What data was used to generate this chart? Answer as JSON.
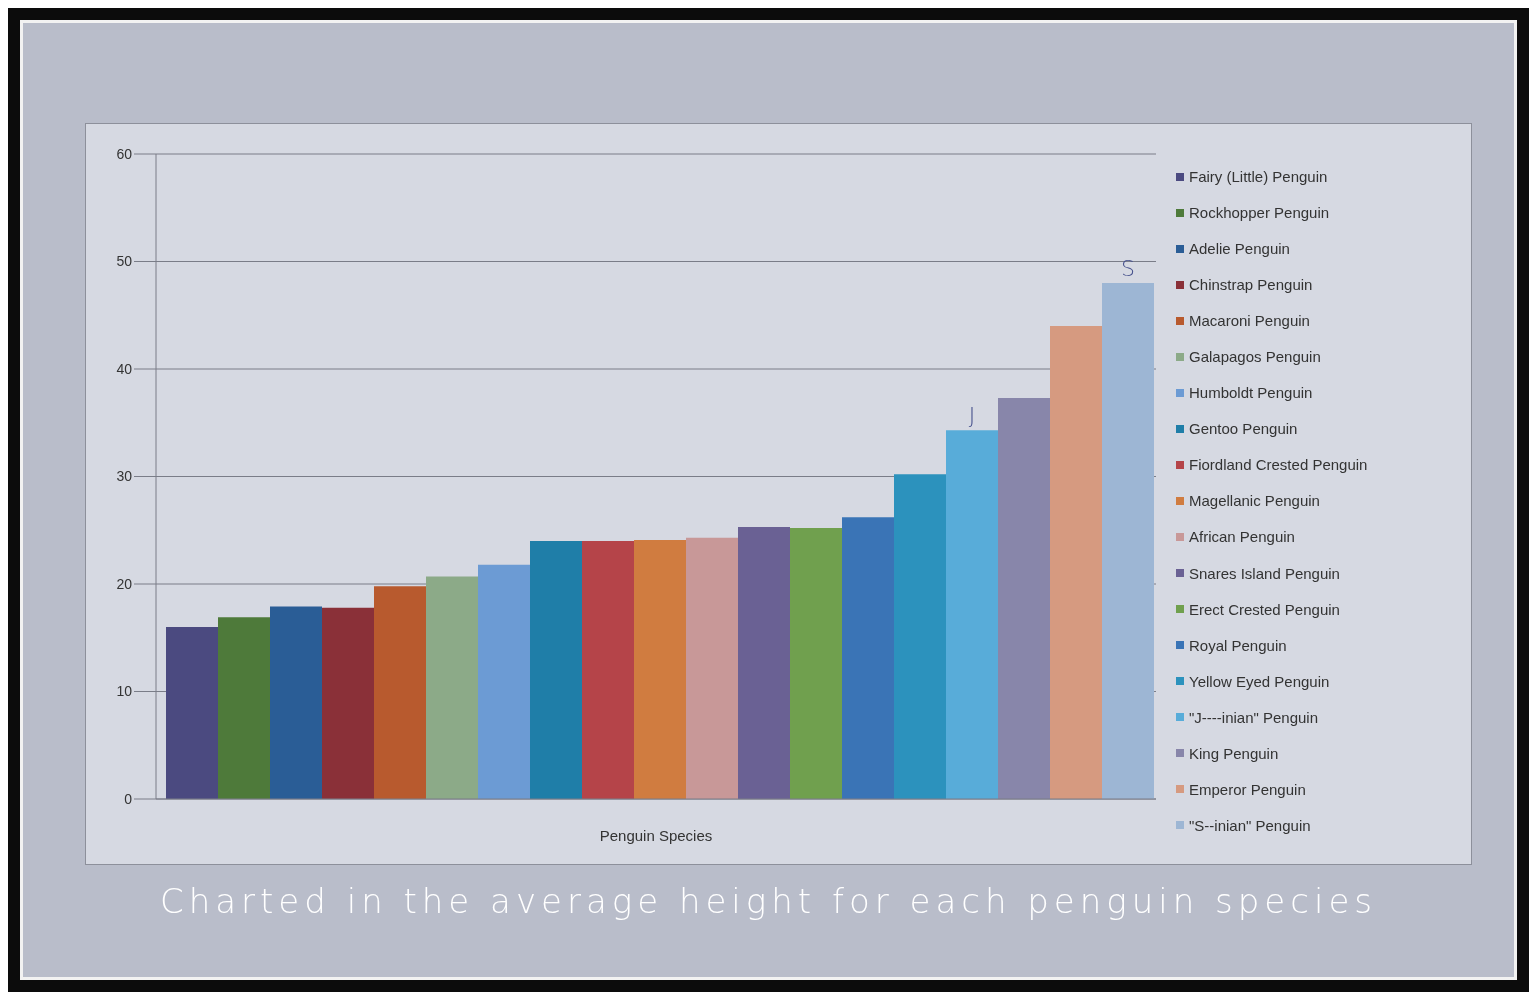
{
  "chart_data": {
    "type": "bar",
    "xlabel": "Penguin Species",
    "categories": [
      null
    ],
    "series": [
      {
        "name": "Fairy (Little) Penguin",
        "color": "#4b4a80",
        "values": [
          16
        ]
      },
      {
        "name": "Rockhopper Penguin",
        "color": "#4e7a3a",
        "values": [
          16.9
        ]
      },
      {
        "name": "Adelie Penguin",
        "color": "#2a5d96",
        "values": [
          17.9
        ]
      },
      {
        "name": "Chinstrap Penguin",
        "color": "#8a3038",
        "values": [
          17.8
        ]
      },
      {
        "name": "Macaroni Penguin",
        "color": "#b85a2e",
        "values": [
          19.8
        ]
      },
      {
        "name": "Galapagos Penguin",
        "color": "#8caa88",
        "values": [
          20.7
        ]
      },
      {
        "name": "Humboldt Penguin",
        "color": "#6c9bd4",
        "values": [
          21.8
        ]
      },
      {
        "name": "Gentoo Penguin",
        "color": "#1f7ea8",
        "values": [
          24
        ]
      },
      {
        "name": "Fiordland Crested Penguin",
        "color": "#b54449",
        "values": [
          24
        ]
      },
      {
        "name": "Magellanic Penguin",
        "color": "#d07c40",
        "values": [
          24.1
        ]
      },
      {
        "name": "African Penguin",
        "color": "#c89898",
        "values": [
          24.3
        ]
      },
      {
        "name": "Snares Island Penguin",
        "color": "#6a6194",
        "values": [
          25.3
        ]
      },
      {
        "name": "Erect Crested Penguin",
        "color": "#70a04e",
        "values": [
          25.2
        ]
      },
      {
        "name": "Royal Penguin",
        "color": "#3a74b6",
        "values": [
          26.2
        ]
      },
      {
        "name": "Yellow Eyed Penguin",
        "color": "#2c92bd",
        "values": [
          30.2
        ]
      },
      {
        "name": "\"J----inian\" Penguin",
        "color": "#58acd9",
        "values": [
          34.3
        ]
      },
      {
        "name": "King Penguin",
        "color": "#8886aa",
        "values": [
          37.3
        ]
      },
      {
        "name": "Emperor Penguin",
        "color": "#d69a80",
        "values": [
          44
        ]
      },
      {
        "name": "\"S--inian\" Penguin",
        "color": "#9db6d4",
        "values": [
          48
        ]
      }
    ],
    "ylim": [
      0,
      60
    ],
    "yticks": [
      0,
      10,
      20,
      30,
      40,
      50,
      60
    ],
    "grid": "y",
    "legend": "right",
    "annotations": [
      {
        "text": "J",
        "y": 34.3
      },
      {
        "text": "S",
        "y": 48
      },
      "Charted in the average height for each penguin species"
    ]
  }
}
